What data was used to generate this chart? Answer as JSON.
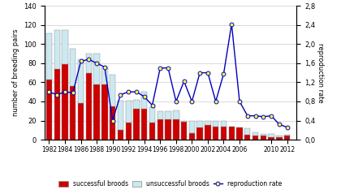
{
  "years": [
    1982,
    1983,
    1984,
    1985,
    1986,
    1987,
    1988,
    1989,
    1990,
    1991,
    1992,
    1993,
    1994,
    1995,
    1996,
    1997,
    1998,
    1999,
    2000,
    2001,
    2002,
    2003,
    2004,
    2005,
    2006,
    2007,
    2008,
    2009,
    2010,
    2011,
    2012
  ],
  "successful": [
    63,
    74,
    79,
    56,
    38,
    70,
    58,
    58,
    35,
    10,
    18,
    32,
    32,
    18,
    21,
    21,
    21,
    19,
    7,
    13,
    15,
    14,
    14,
    14,
    13,
    5,
    4,
    4,
    3,
    3,
    4
  ],
  "unsuccessful": [
    48,
    41,
    36,
    39,
    46,
    20,
    32,
    18,
    33,
    31,
    23,
    10,
    18,
    16,
    9,
    9,
    10,
    1,
    13,
    7,
    5,
    6,
    6,
    0,
    0,
    7,
    4,
    2,
    3,
    1,
    1
  ],
  "repro_rate": [
    1.0,
    0.94,
    1.0,
    0.98,
    1.64,
    1.68,
    1.6,
    1.52,
    0.4,
    0.94,
    1.0,
    1.0,
    0.9,
    0.72,
    1.5,
    1.5,
    0.8,
    1.22,
    0.8,
    1.4,
    1.4,
    0.8,
    1.38,
    2.42,
    0.8,
    0.5,
    0.5,
    0.48,
    0.5,
    0.32,
    0.26
  ],
  "bar_color_successful": "#cc0000",
  "bar_color_unsuccessful": "#cce8f0",
  "bar_edge_color": "#888888",
  "line_color": "#0000bb",
  "marker_color": "#ffff44",
  "marker_edge": "#0000bb",
  "ylabel_left": "number of breeding pairs",
  "ylabel_right": "reproduction rate",
  "ylim_left": [
    0,
    140
  ],
  "ylim_right": [
    0,
    2.8
  ],
  "yticks_left": [
    0,
    20,
    40,
    60,
    80,
    100,
    120,
    140
  ],
  "yticks_right": [
    0.0,
    0.4,
    0.8,
    1.2,
    1.6,
    2.0,
    2.4,
    2.8
  ],
  "xtick_years": [
    1982,
    1984,
    1986,
    1988,
    1990,
    1992,
    1994,
    1996,
    1998,
    2000,
    2002,
    2004,
    2006,
    2010,
    2012
  ],
  "legend_labels": [
    "successful broods",
    "unsuccessful broods",
    "reproduction rate"
  ],
  "background_color": "#ffffff",
  "grid_color": "#cccccc"
}
